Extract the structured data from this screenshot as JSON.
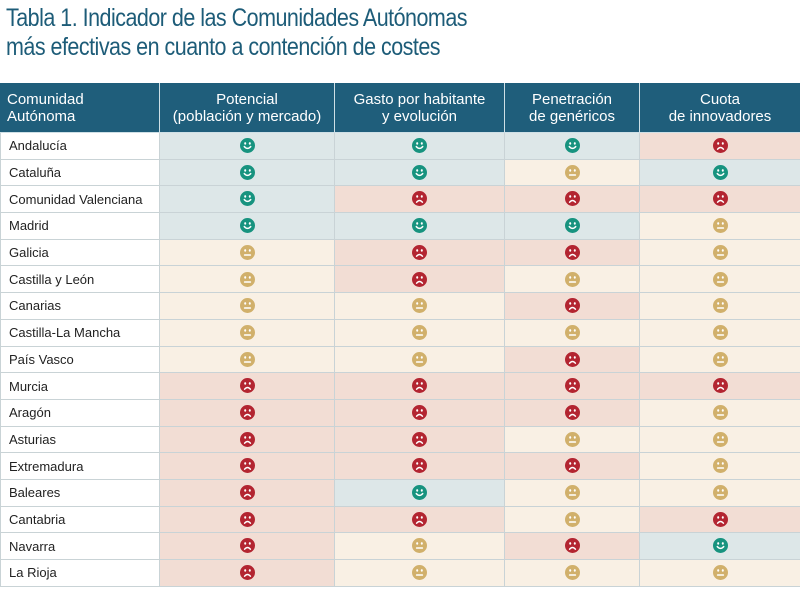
{
  "title": {
    "line1": "Tabla 1. Indicador de las Comunidades Autónomas",
    "line2": "más efectivas en cuanto a contención de costes"
  },
  "table": {
    "headers": [
      [
        "Comunidad",
        "Autónoma"
      ],
      [
        "Potencial",
        "(población y mercado)"
      ],
      [
        "Gasto por habitante",
        "y evolución"
      ],
      [
        "Penetración",
        "de genéricos"
      ],
      [
        "Cuota",
        "de innovadores"
      ]
    ],
    "rows": [
      {
        "name": "Andalucía",
        "ratings": [
          "good",
          "good",
          "good",
          "bad"
        ]
      },
      {
        "name": "Cataluña",
        "ratings": [
          "good",
          "good",
          "neutral",
          "good"
        ]
      },
      {
        "name": "Comunidad Valenciana",
        "ratings": [
          "good",
          "bad",
          "bad",
          "bad"
        ]
      },
      {
        "name": "Madrid",
        "ratings": [
          "good",
          "good",
          "good",
          "neutral"
        ]
      },
      {
        "name": "Galicia",
        "ratings": [
          "neutral",
          "bad",
          "bad",
          "neutral"
        ]
      },
      {
        "name": "Castilla y León",
        "ratings": [
          "neutral",
          "bad",
          "neutral",
          "neutral"
        ]
      },
      {
        "name": "Canarias",
        "ratings": [
          "neutral",
          "neutral",
          "bad",
          "neutral"
        ]
      },
      {
        "name": "Castilla-La Mancha",
        "ratings": [
          "neutral",
          "neutral",
          "neutral",
          "neutral"
        ]
      },
      {
        "name": "País Vasco",
        "ratings": [
          "neutral",
          "neutral",
          "bad",
          "neutral"
        ]
      },
      {
        "name": "Murcia",
        "ratings": [
          "bad",
          "bad",
          "bad",
          "bad"
        ]
      },
      {
        "name": "Aragón",
        "ratings": [
          "bad",
          "bad",
          "bad",
          "neutral"
        ]
      },
      {
        "name": "Asturias",
        "ratings": [
          "bad",
          "bad",
          "neutral",
          "neutral"
        ]
      },
      {
        "name": "Extremadura",
        "ratings": [
          "bad",
          "bad",
          "bad",
          "neutral"
        ]
      },
      {
        "name": "Baleares",
        "ratings": [
          "bad",
          "good",
          "neutral",
          "neutral"
        ]
      },
      {
        "name": "Cantabria",
        "ratings": [
          "bad",
          "bad",
          "neutral",
          "bad"
        ]
      },
      {
        "name": "Navarra",
        "ratings": [
          "bad",
          "neutral",
          "bad",
          "good"
        ]
      },
      {
        "name": "La Rioja",
        "ratings": [
          "bad",
          "neutral",
          "neutral",
          "neutral"
        ]
      }
    ]
  },
  "legend_icons": {
    "good": {
      "icon": "happy-face-icon",
      "color": "#17937f"
    },
    "neutral": {
      "icon": "neutral-face-icon",
      "color": "#d1b06b"
    },
    "bad": {
      "icon": "sad-face-icon",
      "color": "#b32531"
    }
  }
}
